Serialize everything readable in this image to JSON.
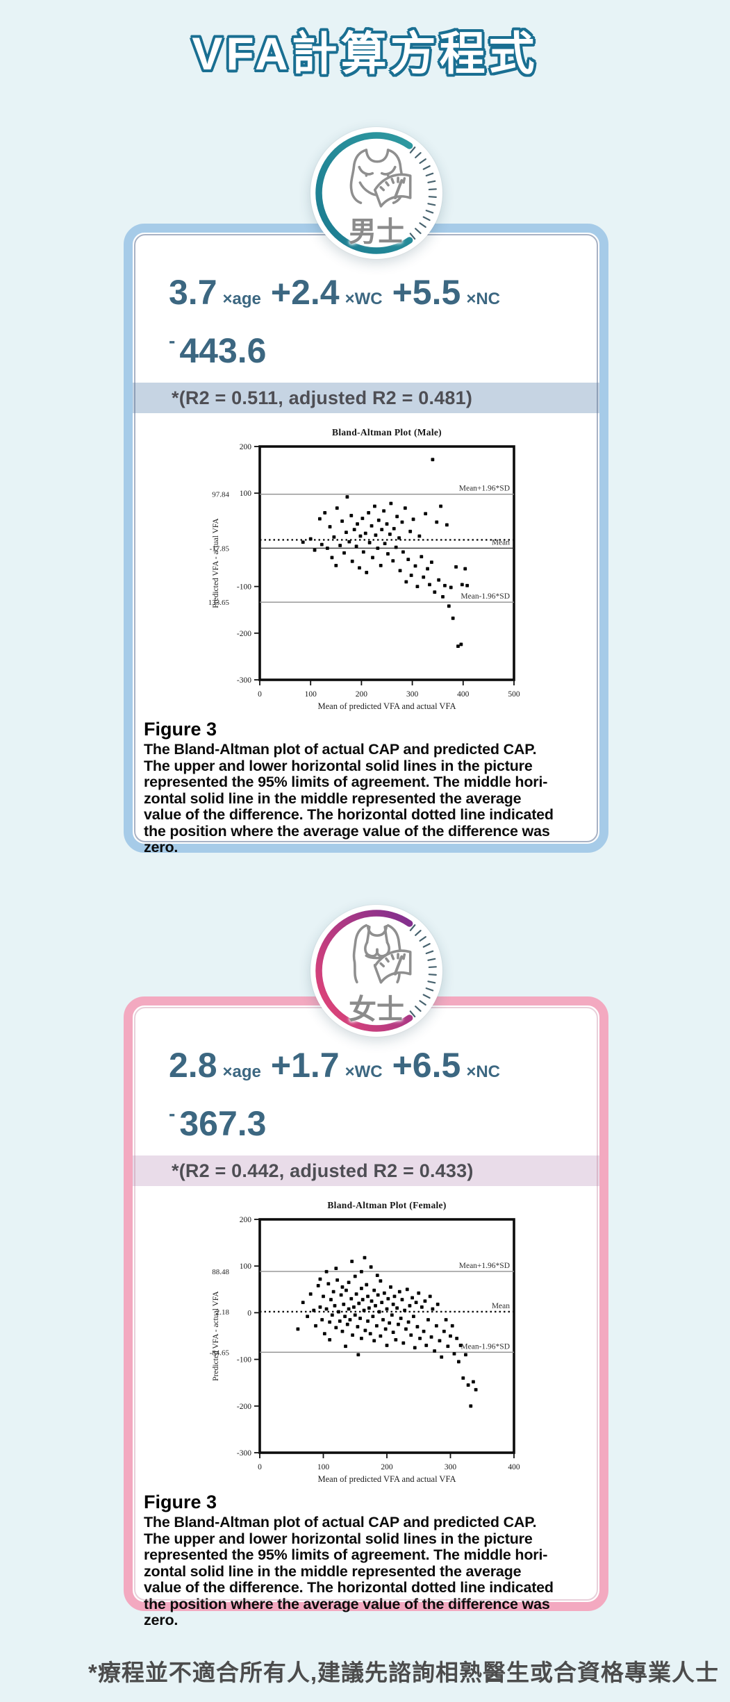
{
  "page": {
    "title": "VFA計算方程式",
    "footer": "*療程並不適合所有人,建議先諮詢相熟醫生或合資格專業人士"
  },
  "colors": {
    "background": "#e7f3f6",
    "title_outline": "#1a6f92",
    "equation_text": "#3c6781",
    "male_card_border": "#a6cbe8",
    "female_card_border": "#f3a9c0",
    "male_band": "#c6d4e3",
    "female_band": "#e9dce9",
    "male_arc": "#1f7b8e",
    "female_arc_start": "#e04478",
    "female_arc_end": "#7f2e8e"
  },
  "male": {
    "badge": "男士",
    "equation": {
      "c1": "3.7",
      "v1": "×age",
      "c2": "+2.4",
      "v2": "×WC",
      "c3": "+5.5",
      "v3": "×NC",
      "minus": "-",
      "constant": "443.6"
    },
    "r2_note": "*(R2 = 0.511, adjusted R2 = 0.481)",
    "figure_label": "Figure 3",
    "caption": "The Bland-Altman plot of actual CAP and predicted CAP.\nThe upper and lower horizontal solid lines in the picture\nrepresented the 95% limits of agreement. The middle hori-\nzontal solid line in the middle represented the average\nvalue of the difference. The horizontal dotted line indicated\nthe position where the average value of the difference was\nzero."
  },
  "female": {
    "badge": "女士",
    "equation": {
      "c1": "2.8",
      "v1": "×age",
      "c2": "+1.7",
      "v2": "×WC",
      "c3": "+6.5",
      "v3": "×NC",
      "minus": "-",
      "constant": "367.3"
    },
    "r2_note": "*(R2 = 0.442, adjusted R2 = 0.433)",
    "figure_label": "Figure 3",
    "caption": "The Bland-Altman plot of actual CAP and predicted CAP.\nThe upper and lower horizontal solid lines in the picture\nrepresented the 95% limits of agreement. The middle hori-\nzontal solid line in the middle represented the average\nvalue of the difference. The horizontal dotted line indicated\nthe position where the average value of the difference was\nzero."
  },
  "chart_data": [
    {
      "type": "scatter",
      "title": "Bland-Altman Plot (Male)",
      "xlabel": "Mean of predicted VFA and actual VFA",
      "ylabel": "Predicted VFA - actual VFA",
      "xlim": [
        0,
        500
      ],
      "ylim": [
        -300,
        200
      ],
      "xticks": [
        0,
        100,
        200,
        300,
        400,
        500
      ],
      "yticks": [
        200,
        100,
        -100,
        -200,
        -300
      ],
      "grid": false,
      "legend": "none",
      "lines": [
        {
          "y": 97.84,
          "style": "solid-gray",
          "value": "97.84",
          "label": "Mean+1.96*SD"
        },
        {
          "y": 0,
          "style": "dotted",
          "value": "",
          "label": ""
        },
        {
          "y": -17.85,
          "style": "solid-dark",
          "value": "-17.85",
          "label": "Mean"
        },
        {
          "y": -133.65,
          "style": "solid-gray",
          "value": "-133.65",
          "label": "Mean-1.96*SD"
        }
      ],
      "points": [
        [
          85,
          -5
        ],
        [
          100,
          2
        ],
        [
          108,
          -22
        ],
        [
          118,
          45
        ],
        [
          122,
          -10
        ],
        [
          128,
          58
        ],
        [
          133,
          -18
        ],
        [
          138,
          28
        ],
        [
          142,
          -38
        ],
        [
          146,
          6
        ],
        [
          150,
          -55
        ],
        [
          152,
          68
        ],
        [
          158,
          -12
        ],
        [
          162,
          40
        ],
        [
          166,
          -28
        ],
        [
          170,
          16
        ],
        [
          172,
          92
        ],
        [
          176,
          -4
        ],
        [
          180,
          52
        ],
        [
          182,
          -46
        ],
        [
          186,
          22
        ],
        [
          190,
          -14
        ],
        [
          192,
          34
        ],
        [
          196,
          -60
        ],
        [
          198,
          8
        ],
        [
          202,
          46
        ],
        [
          204,
          -26
        ],
        [
          208,
          14
        ],
        [
          210,
          -70
        ],
        [
          214,
          58
        ],
        [
          216,
          -6
        ],
        [
          220,
          30
        ],
        [
          222,
          -38
        ],
        [
          226,
          72
        ],
        [
          228,
          10
        ],
        [
          232,
          -18
        ],
        [
          234,
          42
        ],
        [
          238,
          -55
        ],
        [
          240,
          22
        ],
        [
          244,
          62
        ],
        [
          246,
          -8
        ],
        [
          250,
          34
        ],
        [
          252,
          -30
        ],
        [
          256,
          12
        ],
        [
          258,
          78
        ],
        [
          262,
          -45
        ],
        [
          264,
          24
        ],
        [
          268,
          -16
        ],
        [
          270,
          50
        ],
        [
          274,
          4
        ],
        [
          276,
          -66
        ],
        [
          280,
          38
        ],
        [
          282,
          -26
        ],
        [
          286,
          68
        ],
        [
          288,
          -90
        ],
        [
          292,
          -42
        ],
        [
          296,
          18
        ],
        [
          298,
          -76
        ],
        [
          302,
          44
        ],
        [
          306,
          -56
        ],
        [
          310,
          -100
        ],
        [
          314,
          8
        ],
        [
          318,
          -36
        ],
        [
          322,
          -80
        ],
        [
          326,
          56
        ],
        [
          330,
          -62
        ],
        [
          334,
          -96
        ],
        [
          338,
          -48
        ],
        [
          340,
          172
        ],
        [
          344,
          -112
        ],
        [
          348,
          38
        ],
        [
          352,
          -86
        ],
        [
          356,
          72
        ],
        [
          360,
          -122
        ],
        [
          364,
          -98
        ],
        [
          368,
          32
        ],
        [
          372,
          -142
        ],
        [
          376,
          -102
        ],
        [
          380,
          -168
        ],
        [
          386,
          -58
        ],
        [
          390,
          -228
        ],
        [
          396,
          -224
        ],
        [
          398,
          -96
        ],
        [
          404,
          -62
        ],
        [
          408,
          -98
        ]
      ]
    },
    {
      "type": "scatter",
      "title": "Bland-Altman Plot (Female)",
      "xlabel": "Mean of predicted VFA and actual VFA",
      "ylabel": "Predicted VFA - actual VFA",
      "xlim": [
        0,
        400
      ],
      "ylim": [
        -300,
        200
      ],
      "xticks": [
        0,
        100,
        200,
        300,
        400
      ],
      "yticks": [
        200,
        100,
        0,
        -100,
        -200,
        -300
      ],
      "grid": false,
      "legend": "none",
      "lines": [
        {
          "y": 88.48,
          "style": "solid-gray",
          "value": "88.48",
          "label": "Mean+1.96*SD"
        },
        {
          "y": 2.18,
          "style": "dotted",
          "value": "2.18",
          "label": "Mean"
        },
        {
          "y": -84.65,
          "style": "solid-gray",
          "value": "-84.65",
          "label": "Mean-1.96*SD"
        }
      ],
      "points": [
        [
          60,
          -35
        ],
        [
          68,
          22
        ],
        [
          75,
          -8
        ],
        [
          80,
          40
        ],
        [
          85,
          5
        ],
        [
          88,
          -28
        ],
        [
          92,
          58
        ],
        [
          95,
          12
        ],
        [
          98,
          -15
        ],
        [
          100,
          35
        ],
        [
          102,
          -45
        ],
        [
          105,
          8
        ],
        [
          108,
          62
        ],
        [
          110,
          -20
        ],
        [
          112,
          28
        ],
        [
          114,
          -5
        ],
        [
          116,
          45
        ],
        [
          118,
          15
        ],
        [
          120,
          -32
        ],
        [
          122,
          70
        ],
        [
          124,
          2
        ],
        [
          126,
          -18
        ],
        [
          128,
          38
        ],
        [
          130,
          55
        ],
        [
          130,
          -40
        ],
        [
          132,
          18
        ],
        [
          134,
          -8
        ],
        [
          136,
          48
        ],
        [
          138,
          -25
        ],
        [
          140,
          65
        ],
        [
          140,
          8
        ],
        [
          142,
          -15
        ],
        [
          144,
          30
        ],
        [
          146,
          -48
        ],
        [
          148,
          12
        ],
        [
          150,
          78
        ],
        [
          150,
          -5
        ],
        [
          152,
          40
        ],
        [
          154,
          -30
        ],
        [
          156,
          20
        ],
        [
          158,
          -12
        ],
        [
          160,
          52
        ],
        [
          160,
          -55
        ],
        [
          162,
          28
        ],
        [
          164,
          5
        ],
        [
          166,
          -38
        ],
        [
          168,
          60
        ],
        [
          170,
          -18
        ],
        [
          170,
          35
        ],
        [
          172,
          10
        ],
        [
          174,
          -45
        ],
        [
          176,
          25
        ],
        [
          178,
          -8
        ],
        [
          180,
          48
        ],
        [
          180,
          -60
        ],
        [
          182,
          15
        ],
        [
          184,
          -28
        ],
        [
          186,
          38
        ],
        [
          188,
          2
        ],
        [
          190,
          -50
        ],
        [
          190,
          68
        ],
        [
          192,
          22
        ],
        [
          194,
          -15
        ],
        [
          196,
          42
        ],
        [
          198,
          -35
        ],
        [
          200,
          8
        ],
        [
          200,
          -70
        ],
        [
          202,
          30
        ],
        [
          204,
          -22
        ],
        [
          206,
          55
        ],
        [
          208,
          -5
        ],
        [
          210,
          18
        ],
        [
          210,
          -42
        ],
        [
          212,
          35
        ],
        [
          214,
          -58
        ],
        [
          216,
          10
        ],
        [
          218,
          -25
        ],
        [
          220,
          45
        ],
        [
          222,
          -12
        ],
        [
          224,
          28
        ],
        [
          226,
          -65
        ],
        [
          228,
          5
        ],
        [
          230,
          -35
        ],
        [
          232,
          50
        ],
        [
          234,
          -20
        ],
        [
          236,
          15
        ],
        [
          238,
          -48
        ],
        [
          240,
          32
        ],
        [
          242,
          -8
        ],
        [
          244,
          -75
        ],
        [
          246,
          22
        ],
        [
          248,
          -30
        ],
        [
          250,
          42
        ],
        [
          252,
          -55
        ],
        [
          255,
          12
        ],
        [
          258,
          -40
        ],
        [
          260,
          25
        ],
        [
          262,
          -70
        ],
        [
          265,
          -15
        ],
        [
          268,
          35
        ],
        [
          270,
          -52
        ],
        [
          272,
          8
        ],
        [
          275,
          -82
        ],
        [
          278,
          -28
        ],
        [
          280,
          18
        ],
        [
          283,
          -60
        ],
        [
          286,
          -95
        ],
        [
          290,
          -40
        ],
        [
          293,
          -15
        ],
        [
          296,
          -72
        ],
        [
          300,
          -50
        ],
        [
          303,
          -28
        ],
        [
          306,
          -88
        ],
        [
          310,
          -55
        ],
        [
          313,
          -105
        ],
        [
          316,
          -70
        ],
        [
          320,
          -140
        ],
        [
          324,
          -90
        ],
        [
          328,
          -155
        ],
        [
          332,
          -200
        ],
        [
          336,
          -148
        ],
        [
          340,
          -165
        ],
        [
          120,
          95
        ],
        [
          145,
          110
        ],
        [
          160,
          88
        ],
        [
          165,
          118
        ],
        [
          175,
          98
        ],
        [
          185,
          80
        ],
        [
          155,
          -90
        ],
        [
          135,
          -72
        ],
        [
          110,
          -58
        ],
        [
          95,
          72
        ],
        [
          105,
          88
        ]
      ]
    }
  ]
}
